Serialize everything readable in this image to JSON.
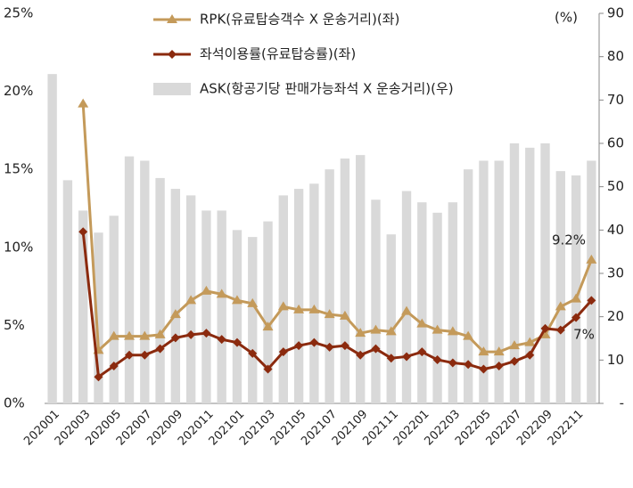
{
  "chart_data": {
    "type": "bar_line",
    "categories": [
      "202001",
      null,
      "202003",
      null,
      "202005",
      null,
      "202007",
      null,
      "202009",
      null,
      "202011",
      null,
      "202101",
      null,
      "202103",
      null,
      "202105",
      null,
      "202107",
      null,
      "202109",
      null,
      "202111",
      null,
      "202201",
      null,
      "202203",
      null,
      "202205",
      null,
      "202207",
      null,
      "202209",
      null,
      "202211",
      null
    ],
    "series": [
      {
        "name": "RPK(유료탑승객수 X 운송거리)(좌)",
        "color": "#c49a5a",
        "type": "line",
        "marker": "triangle",
        "values": [
          null,
          null,
          19.2,
          3.4,
          4.3,
          4.3,
          4.3,
          4.4,
          5.7,
          6.6,
          7.2,
          7.0,
          6.6,
          6.4,
          4.9,
          6.2,
          6.0,
          6.0,
          5.7,
          5.6,
          4.5,
          4.7,
          4.6,
          5.9,
          5.1,
          4.7,
          4.6,
          4.3,
          3.3,
          3.3,
          3.7,
          3.9,
          4.4,
          6.2,
          6.7,
          9.2
        ]
      },
      {
        "name": "좌석이용률(유료탑승률)(좌)",
        "color": "#8b2a0e",
        "type": "line",
        "marker": "diamond",
        "values": [
          null,
          null,
          11.0,
          1.7,
          2.4,
          3.1,
          3.1,
          3.5,
          4.2,
          4.4,
          4.5,
          4.1,
          3.9,
          3.2,
          2.2,
          3.3,
          3.7,
          3.9,
          3.6,
          3.7,
          3.1,
          3.5,
          2.9,
          3.0,
          3.3,
          2.8,
          2.6,
          2.5,
          2.2,
          2.4,
          2.7,
          3.1,
          4.8,
          4.7,
          5.5,
          6.6
        ]
      },
      {
        "name": "ASK(항공기당 판매가능좌석 X 운송거리)(우)",
        "color": "#d9d9d9",
        "type": "bar",
        "axis": "y2",
        "values": [
          76,
          51.5,
          44.5,
          39.4,
          43.3,
          57,
          56,
          52,
          49.5,
          48,
          44.5,
          44.5,
          40,
          38.4,
          42,
          48,
          49.5,
          50.7,
          54,
          56.5,
          57.3,
          47,
          39,
          49,
          46.4,
          44,
          46.4,
          54,
          56,
          56,
          60,
          59,
          60,
          53.6,
          52.6,
          56
        ]
      }
    ],
    "ylim": [
      0,
      25
    ],
    "yticks": [
      {
        "value": 0,
        "label": "0%"
      },
      {
        "value": 5,
        "label": "5%"
      },
      {
        "value": 10,
        "label": "10%"
      },
      {
        "value": 15,
        "label": "15%"
      },
      {
        "value": 20,
        "label": "20%"
      },
      {
        "value": 25,
        "label": "25%"
      }
    ],
    "y2lim": [
      0,
      90
    ],
    "y2ticks": [
      {
        "value": 0,
        "label": "-"
      },
      10,
      20,
      30,
      40,
      50,
      60,
      70,
      80,
      90
    ],
    "y2_unit": "(%)",
    "annotations": [
      "9.2%",
      "7%"
    ],
    "grid": false
  }
}
